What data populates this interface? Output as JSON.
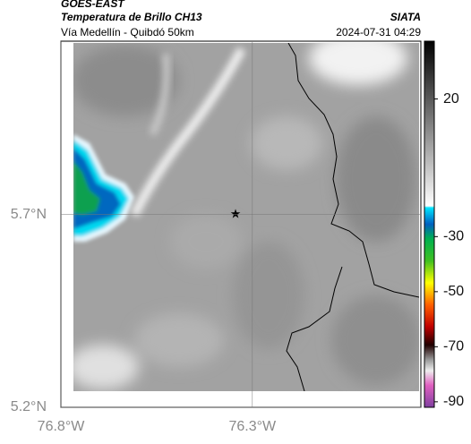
{
  "map": {
    "source": "GOES-EAST",
    "title": "Temperatura de Brillo CH13",
    "brand": "SIATA",
    "subtitle": "Vía Medellín - Quibdó 50km",
    "datetime": "2024-07-31 04:29",
    "xlim": [
      -76.8,
      -75.86
    ],
    "ylim": [
      5.2,
      6.15
    ],
    "xticks": [
      {
        "value": -76.8,
        "label": "76.8°W"
      },
      {
        "value": -76.3,
        "label": "76.3°W"
      }
    ],
    "yticks": [
      {
        "value": 5.2,
        "label": "5.2°N"
      },
      {
        "value": 5.7,
        "label": "5.7°N"
      }
    ],
    "colorbar": {
      "clim": [
        -92,
        41
      ],
      "ticks": [
        20,
        -30,
        -50,
        -70,
        -90
      ]
    }
  }
}
